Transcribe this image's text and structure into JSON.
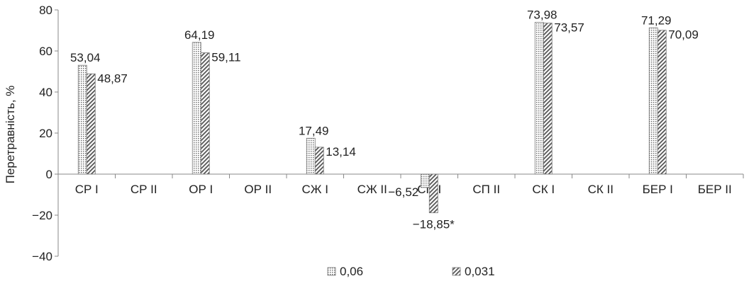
{
  "chart_data": {
    "type": "bar",
    "ylabel": "Перетравність, %",
    "ylim": [
      -40,
      80
    ],
    "yticks": [
      "80",
      "60",
      "40",
      "20",
      "0",
      "−20",
      "−40"
    ],
    "categories": [
      "СР I",
      "СР II",
      "ОР I",
      "ОР II",
      "СЖ I",
      "СЖ II",
      "СП I",
      "СП II",
      "СК I",
      "СК II",
      "БЕР I",
      "БЕР II"
    ],
    "series": [
      {
        "name": "0,06",
        "pattern": "dots",
        "values": [
          53.04,
          null,
          64.19,
          null,
          17.49,
          null,
          -6.52,
          null,
          73.98,
          null,
          71.29,
          null
        ],
        "labels": [
          "53,04",
          "",
          "64,19",
          "",
          "17,49",
          "",
          "−6,52",
          "",
          "73,98",
          "",
          "71,29",
          ""
        ]
      },
      {
        "name": "0,031",
        "pattern": "hatch",
        "values": [
          48.87,
          null,
          59.11,
          null,
          13.14,
          null,
          -18.85,
          null,
          73.57,
          null,
          70.09,
          null
        ],
        "labels": [
          "48,87",
          "",
          "59,11",
          "",
          "13,14",
          "",
          "−18,85*",
          "",
          "73,57",
          "",
          "70,09",
          ""
        ]
      }
    ],
    "grid": false,
    "legend_position": "bottom"
  }
}
